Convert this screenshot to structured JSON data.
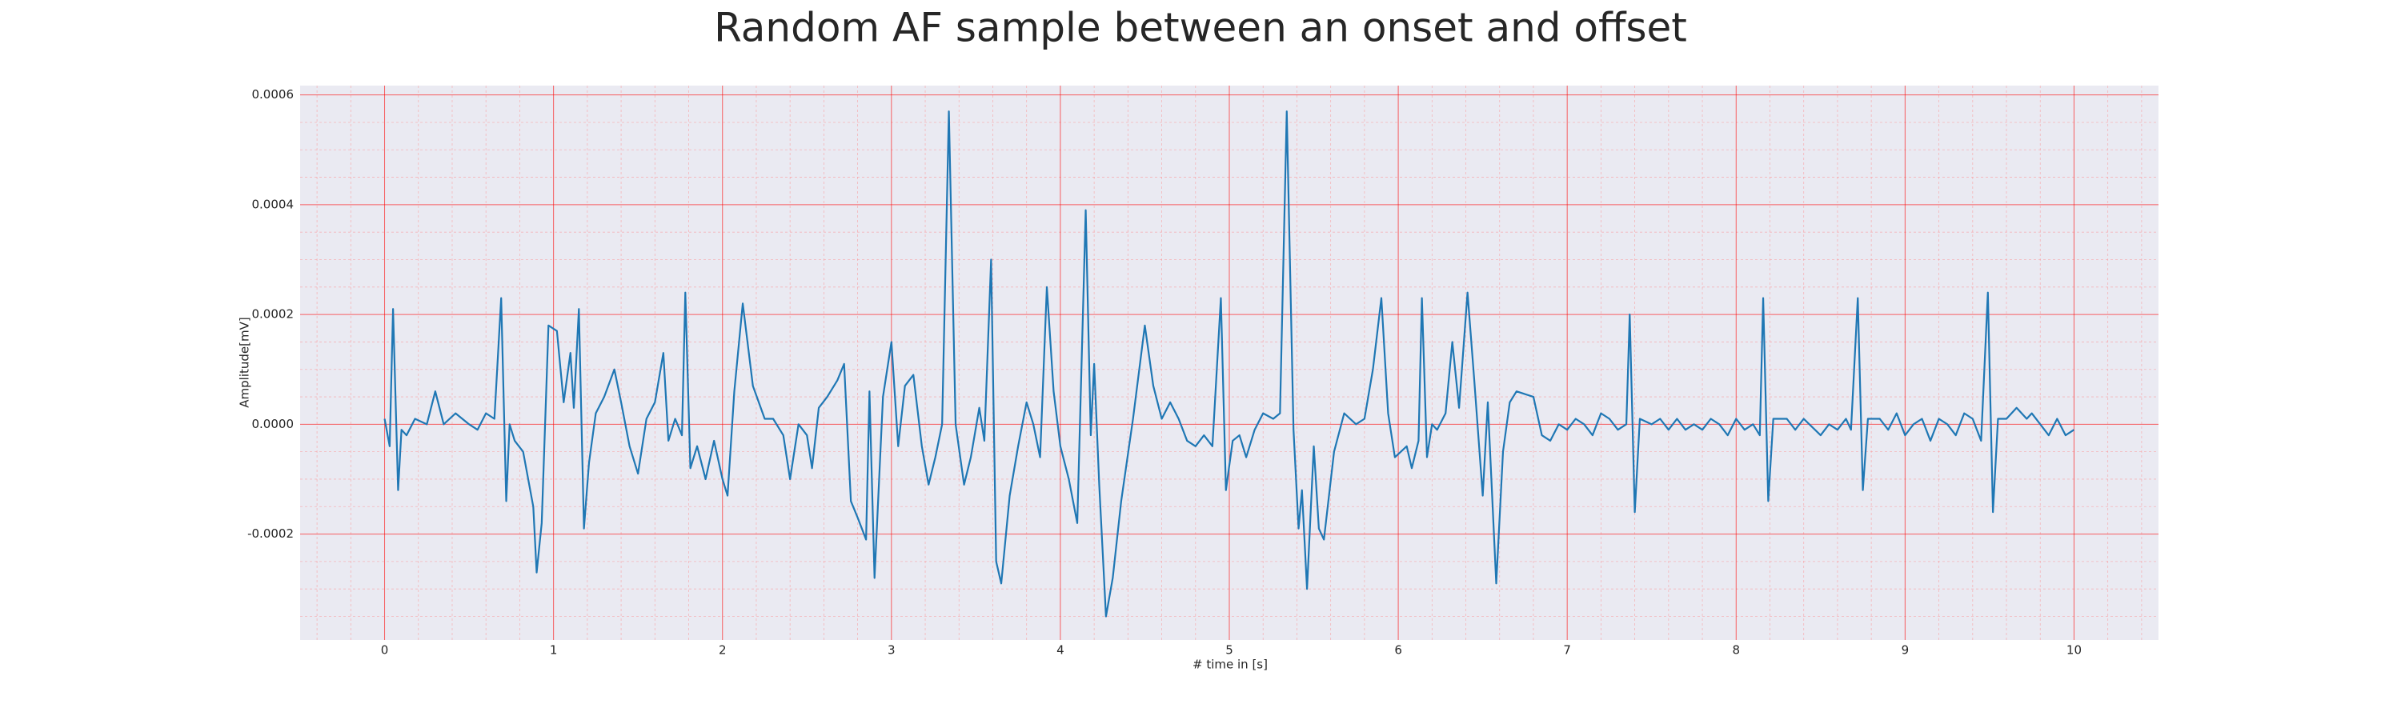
{
  "chart_data": {
    "type": "line",
    "title": "Random AF sample between an onset and offset",
    "xlabel": "# time in [s]",
    "ylabel": "Amplitude[mV]",
    "color": "#1f77b4",
    "grid": true,
    "minor_grid": true,
    "xlim": [
      -0.5,
      10.5
    ],
    "xticks": [
      0,
      1,
      2,
      3,
      4,
      5,
      6,
      7,
      8,
      9,
      10
    ],
    "ylim": [
      -0.000393,
      0.000617
    ],
    "yticks": [
      -0.0002,
      {
        "value": 0,
        "label": "0.0000"
      },
      0.0002,
      0.0004,
      0.0006
    ],
    "x": [
      0,
      0.03,
      0.05,
      0.08,
      0.1,
      0.13,
      0.18,
      0.25,
      0.3,
      0.35,
      0.42,
      0.5,
      0.55,
      0.6,
      0.65,
      0.69,
      0.72,
      0.74,
      0.77,
      0.82,
      0.88,
      0.9,
      0.93,
      0.97,
      1.02,
      1.06,
      1.1,
      1.12,
      1.15,
      1.18,
      1.21,
      1.25,
      1.3,
      1.36,
      1.4,
      1.45,
      1.5,
      1.55,
      1.6,
      1.65,
      1.68,
      1.72,
      1.76,
      1.78,
      1.81,
      1.85,
      1.9,
      1.95,
      2.0,
      2.03,
      2.07,
      2.12,
      2.18,
      2.25,
      2.3,
      2.36,
      2.4,
      2.45,
      2.5,
      2.53,
      2.57,
      2.62,
      2.68,
      2.72,
      2.76,
      2.8,
      2.85,
      2.87,
      2.9,
      2.95,
      3.0,
      3.04,
      3.08,
      3.13,
      3.18,
      3.22,
      3.26,
      3.3,
      3.34,
      3.38,
      3.43,
      3.47,
      3.52,
      3.55,
      3.59,
      3.62,
      3.65,
      3.7,
      3.75,
      3.8,
      3.84,
      3.88,
      3.92,
      3.96,
      4.0,
      4.05,
      4.1,
      4.15,
      4.18,
      4.2,
      4.23,
      4.27,
      4.31,
      4.36,
      4.43,
      4.5,
      4.55,
      4.6,
      4.65,
      4.7,
      4.75,
      4.8,
      4.85,
      4.9,
      4.95,
      4.98,
      5.02,
      5.06,
      5.1,
      5.15,
      5.2,
      5.26,
      5.3,
      5.34,
      5.38,
      5.41,
      5.43,
      5.46,
      5.5,
      5.53,
      5.56,
      5.62,
      5.68,
      5.75,
      5.8,
      5.85,
      5.9,
      5.94,
      5.98,
      6.05,
      6.08,
      6.12,
      6.14,
      6.17,
      6.2,
      6.23,
      6.28,
      6.32,
      6.36,
      6.41,
      6.45,
      6.5,
      6.53,
      6.58,
      6.62,
      6.66,
      6.7,
      6.8,
      6.85,
      6.9,
      6.95,
      7.0,
      7.05,
      7.1,
      7.15,
      7.2,
      7.25,
      7.3,
      7.35,
      7.37,
      7.4,
      7.43,
      7.5,
      7.55,
      7.6,
      7.65,
      7.7,
      7.75,
      7.8,
      7.85,
      7.9,
      7.95,
      8.0,
      8.05,
      8.1,
      8.14,
      8.16,
      8.19,
      8.22,
      8.3,
      8.35,
      8.4,
      8.5,
      8.55,
      8.6,
      8.65,
      8.68,
      8.72,
      8.75,
      8.78,
      8.85,
      8.9,
      8.95,
      9.0,
      9.05,
      9.1,
      9.15,
      9.2,
      9.25,
      9.3,
      9.35,
      9.4,
      9.45,
      9.49,
      9.52,
      9.55,
      9.6,
      9.66,
      9.72,
      9.75,
      9.8,
      9.85,
      9.9,
      9.95,
      10.0
    ],
    "values": [
      1e-05,
      -4e-05,
      0.00021,
      -0.00012,
      -1e-05,
      -2e-05,
      1e-05,
      0,
      6e-05,
      0,
      2e-05,
      0,
      -1e-05,
      2e-05,
      1e-05,
      0.00023,
      -0.00014,
      0,
      -3e-05,
      -5e-05,
      -0.00015,
      -0.00027,
      -0.00018,
      0.00018,
      0.00017,
      4e-05,
      0.00013,
      3e-05,
      0.00021,
      -0.00019,
      -7e-05,
      2e-05,
      5e-05,
      0.0001,
      4e-05,
      -4e-05,
      -9e-05,
      1e-05,
      4e-05,
      0.00013,
      -3e-05,
      1e-05,
      -2e-05,
      0.00024,
      -8e-05,
      -4e-05,
      -0.0001,
      -3e-05,
      -0.0001,
      -0.00013,
      6e-05,
      0.00022,
      7e-05,
      1e-05,
      1e-05,
      -2e-05,
      -0.0001,
      0,
      -2e-05,
      -8e-05,
      3e-05,
      5e-05,
      8e-05,
      0.00011,
      -0.00014,
      -0.00017,
      -0.00021,
      6e-05,
      -0.00028,
      5e-05,
      0.00015,
      -4e-05,
      7e-05,
      9e-05,
      -4e-05,
      -0.00011,
      -6e-05,
      0,
      0.00057,
      0,
      -0.00011,
      -6e-05,
      3e-05,
      -3e-05,
      0.0003,
      -0.00025,
      -0.00029,
      -0.00013,
      -4e-05,
      4e-05,
      0,
      -6e-05,
      0.00025,
      6e-05,
      -4e-05,
      -0.0001,
      -0.00018,
      0.00039,
      -2e-05,
      0.00011,
      -0.00011,
      -0.00035,
      -0.00028,
      -0.00014,
      1e-05,
      0.00018,
      7e-05,
      1e-05,
      4e-05,
      1e-05,
      -3e-05,
      -4e-05,
      -2e-05,
      -4e-05,
      0.00023,
      -0.00012,
      -3e-05,
      -2e-05,
      -6e-05,
      -1e-05,
      2e-05,
      1e-05,
      2e-05,
      0.00057,
      -1e-05,
      -0.00019,
      -0.00012,
      -0.0003,
      -4e-05,
      -0.00019,
      -0.00021,
      -5e-05,
      2e-05,
      0,
      1e-05,
      0.0001,
      0.00023,
      2e-05,
      -6e-05,
      -4e-05,
      -8e-05,
      -3e-05,
      0.00023,
      -6e-05,
      0,
      -1e-05,
      2e-05,
      0.00015,
      3e-05,
      0.00024,
      8e-05,
      -0.00013,
      4e-05,
      -0.00029,
      -5e-05,
      4e-05,
      6e-05,
      5e-05,
      -2e-05,
      -3e-05,
      0,
      -1e-05,
      1e-05,
      0,
      -2e-05,
      2e-05,
      1e-05,
      -1e-05,
      0,
      0.0002,
      -0.00016,
      1e-05,
      0,
      1e-05,
      -1e-05,
      1e-05,
      -1e-05,
      0,
      -1e-05,
      1e-05,
      0,
      -2e-05,
      1e-05,
      -1e-05,
      0,
      -2e-05,
      0.00023,
      -0.00014,
      1e-05,
      1e-05,
      -1e-05,
      1e-05,
      -2e-05,
      0,
      -1e-05,
      1e-05,
      -1e-05,
      0.00023,
      -0.00012,
      1e-05,
      1e-05,
      -1e-05,
      2e-05,
      -2e-05,
      0,
      1e-05,
      -3e-05,
      1e-05,
      0,
      -2e-05,
      2e-05,
      1e-05,
      -3e-05,
      0.00024,
      -0.00016,
      1e-05,
      1e-05,
      3e-05,
      1e-05,
      2e-05,
      0,
      -2e-05,
      1e-05,
      -2e-05,
      -1e-05
    ]
  }
}
